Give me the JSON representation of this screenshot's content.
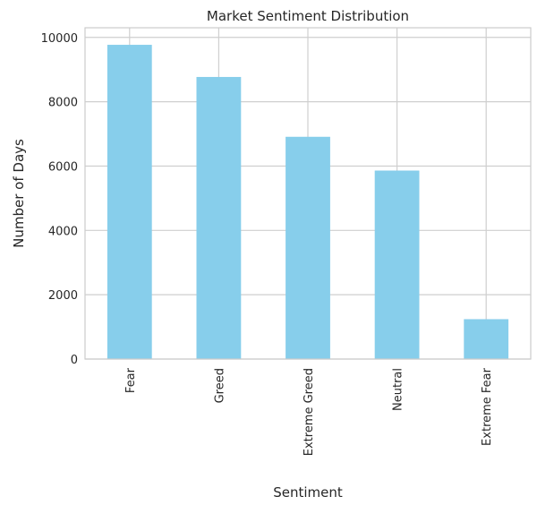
{
  "chart_data": {
    "type": "bar",
    "title": "Market Sentiment Distribution",
    "xlabel": "Sentiment",
    "ylabel": "Number of Days",
    "categories": [
      "Fear",
      "Greed",
      "Extreme Greed",
      "Neutral",
      "Extreme Fear"
    ],
    "values": [
      9770,
      8770,
      6910,
      5860,
      1240
    ],
    "ylim": [
      0,
      10300
    ],
    "yticks": [
      0,
      2000,
      4000,
      6000,
      8000,
      10000
    ],
    "bar_color": "#87ceeb",
    "grid": true,
    "legend": false
  }
}
